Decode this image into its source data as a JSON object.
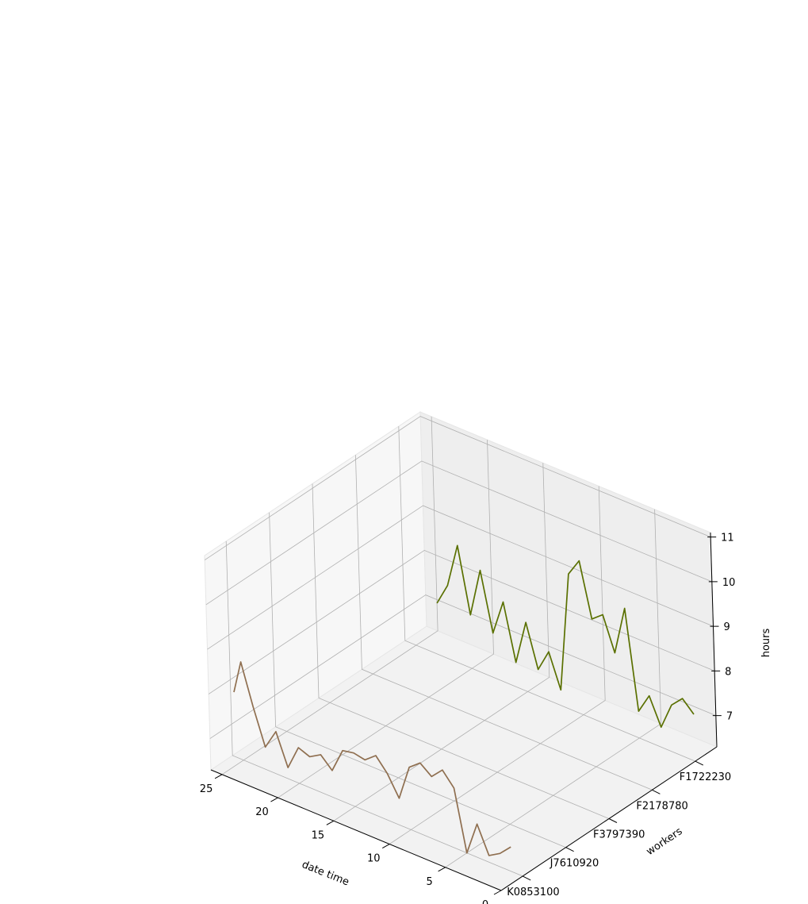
{
  "chart_data": {
    "type": "line",
    "projection": "3d",
    "xlabel": "date time",
    "ylabel": "workers",
    "zlabel": "hours",
    "x_ticks": [
      0,
      5,
      10,
      15,
      20,
      25
    ],
    "worker_ticks": [
      "K0853100",
      "J7610920",
      "F3797390",
      "F2178780",
      "F1722230"
    ],
    "z_ticks": [
      7,
      8,
      9,
      10,
      11
    ],
    "xlim": [
      0,
      26
    ],
    "zlim": [
      6.3,
      11.1
    ],
    "pane_grid": true,
    "series": [
      {
        "worker": "F1722230",
        "color": "#5a7000",
        "points": [
          [
            0.0,
            7.35
          ],
          [
            1.0,
            7.6
          ],
          [
            2.0,
            7.35
          ],
          [
            3.0,
            6.75
          ],
          [
            4.0,
            7.35
          ],
          [
            5.0,
            6.9
          ],
          [
            6.0,
            9.1
          ],
          [
            7.0,
            8.0
          ],
          [
            8.0,
            8.75
          ],
          [
            9.0,
            8.55
          ],
          [
            10.0,
            9.75
          ],
          [
            11.0,
            9.35
          ],
          [
            12.0,
            6.65
          ],
          [
            13.0,
            7.4
          ],
          [
            14.0,
            6.9
          ],
          [
            15.0,
            7.85
          ],
          [
            16.0,
            6.85
          ],
          [
            17.0,
            8.1
          ],
          [
            18.0,
            7.3
          ],
          [
            19.0,
            8.6
          ],
          [
            20.0,
            7.5
          ],
          [
            21.0,
            8.95
          ],
          [
            22.0,
            7.95
          ],
          [
            23.0,
            7.45
          ]
        ]
      },
      {
        "worker": "K0853100",
        "color": "#8f6f50",
        "points": [
          [
            1.0,
            6.85
          ],
          [
            2.0,
            6.6
          ],
          [
            3.0,
            6.45
          ],
          [
            4.0,
            7.05
          ],
          [
            5.0,
            6.3
          ],
          [
            6.0,
            7.65
          ],
          [
            7.0,
            7.95
          ],
          [
            8.0,
            7.7
          ],
          [
            9.0,
            7.9
          ],
          [
            10.0,
            7.7
          ],
          [
            11.0,
            6.9
          ],
          [
            12.0,
            7.35
          ],
          [
            13.0,
            7.65
          ],
          [
            14.0,
            7.45
          ],
          [
            15.0,
            7.5
          ],
          [
            16.0,
            7.45
          ],
          [
            17.0,
            6.9
          ],
          [
            18.0,
            7.15
          ],
          [
            19.0,
            7.0
          ],
          [
            20.0,
            7.1
          ],
          [
            21.0,
            6.55
          ],
          [
            22.0,
            7.25
          ],
          [
            23.0,
            6.8
          ],
          [
            24.0,
            7.6
          ],
          [
            25.0,
            8.5
          ],
          [
            25.7,
            7.75
          ]
        ]
      }
    ]
  }
}
